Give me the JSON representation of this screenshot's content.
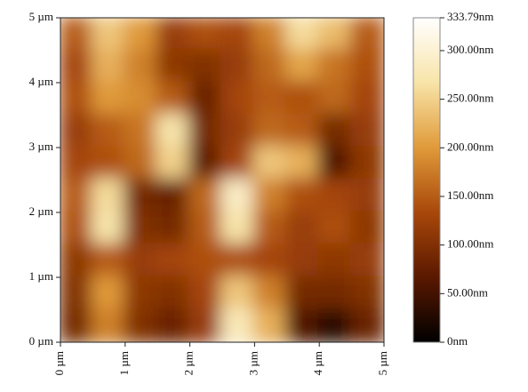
{
  "chart_data": {
    "type": "heatmap",
    "xlim": [
      0,
      5
    ],
    "ylim": [
      0,
      5
    ],
    "xticks": [
      {
        "value": 0,
        "label": "0 µm"
      },
      {
        "value": 1,
        "label": "1 µm"
      },
      {
        "value": 2,
        "label": "2 µm"
      },
      {
        "value": 3,
        "label": "3 µm"
      },
      {
        "value": 4,
        "label": "4 µm"
      },
      {
        "value": 5,
        "label": "5 µm"
      }
    ],
    "yticks": [
      {
        "value": 0,
        "label": "0 µm"
      },
      {
        "value": 1,
        "label": "1 µm"
      },
      {
        "value": 2,
        "label": "2 µm"
      },
      {
        "value": 3,
        "label": "3 µm"
      },
      {
        "value": 4,
        "label": "4 µm"
      },
      {
        "value": 5,
        "label": "5 µm"
      }
    ],
    "z": [
      [
        150,
        240,
        200,
        120,
        140,
        130,
        180,
        260,
        230,
        150
      ],
      [
        130,
        220,
        180,
        110,
        100,
        120,
        160,
        210,
        170,
        140
      ],
      [
        140,
        200,
        190,
        150,
        80,
        130,
        150,
        140,
        160,
        130
      ],
      [
        120,
        150,
        170,
        270,
        90,
        120,
        160,
        150,
        90,
        120
      ],
      [
        130,
        140,
        160,
        250,
        70,
        130,
        240,
        220,
        60,
        110
      ],
      [
        150,
        260,
        90,
        80,
        160,
        290,
        180,
        140,
        130,
        120
      ],
      [
        140,
        270,
        100,
        90,
        150,
        270,
        150,
        120,
        140,
        110
      ],
      [
        110,
        150,
        120,
        130,
        140,
        140,
        130,
        120,
        110,
        120
      ],
      [
        100,
        200,
        110,
        100,
        130,
        240,
        180,
        90,
        90,
        100
      ],
      [
        90,
        180,
        100,
        80,
        120,
        280,
        220,
        60,
        30,
        80
      ]
    ],
    "colormap": [
      "#000000",
      "#5a1800",
      "#a8480a",
      "#e09a3a",
      "#f8e4a8",
      "#ffffff"
    ],
    "clim": [
      0,
      333.79
    ],
    "cticks": [
      {
        "value": 0,
        "label": "0nm"
      },
      {
        "value": 50,
        "label": "50.00nm"
      },
      {
        "value": 100,
        "label": "100.00nm"
      },
      {
        "value": 150,
        "label": "150.00nm"
      },
      {
        "value": 200,
        "label": "200.00nm"
      },
      {
        "value": 250,
        "label": "250.00nm"
      },
      {
        "value": 300,
        "label": "300.00nm"
      },
      {
        "value": 333.79,
        "label": "333.79nm"
      }
    ]
  }
}
